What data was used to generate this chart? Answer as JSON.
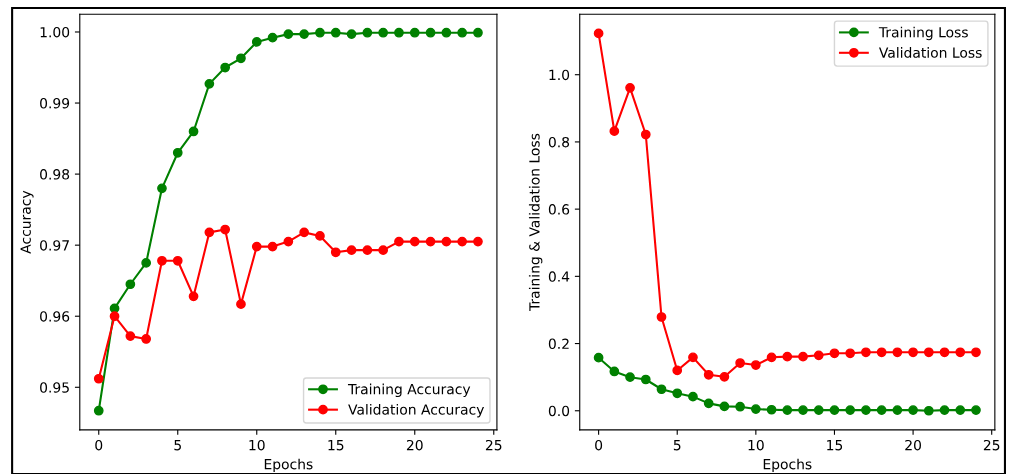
{
  "chart_data": [
    {
      "type": "line",
      "xlabel": "Epochs",
      "ylabel": "Accuracy",
      "x": [
        0,
        1,
        2,
        3,
        4,
        5,
        6,
        7,
        8,
        9,
        10,
        11,
        12,
        13,
        14,
        15,
        16,
        17,
        18,
        19,
        20,
        21,
        22,
        23,
        24
      ],
      "xlim": [
        -1.2,
        25.2
      ],
      "xticks": [
        0,
        5,
        10,
        15,
        20,
        25
      ],
      "ylim": [
        0.944,
        1.0025
      ],
      "yticks": [
        {
          "value": 0.95,
          "label": "0.95"
        },
        {
          "value": 0.96,
          "label": "0.96"
        },
        {
          "value": 0.97,
          "label": "0.97"
        },
        {
          "value": 0.98,
          "label": "0.98"
        },
        {
          "value": 0.99,
          "label": "0.99"
        },
        {
          "value": 1.0,
          "label": "1.00"
        }
      ],
      "marker": "circle",
      "line_style": "solid",
      "legend": "bottom right",
      "grid": false,
      "series": [
        {
          "name": "Training Accuracy",
          "color": "#008000",
          "values": [
            0.9467,
            0.9611,
            0.9645,
            0.9675,
            0.978,
            0.983,
            0.986,
            0.9927,
            0.995,
            0.9963,
            0.9986,
            0.9992,
            0.9997,
            0.9997,
            0.9999,
            0.9999,
            0.9997,
            0.9999,
            0.9999,
            0.9999,
            0.9999,
            0.9999,
            0.9999,
            0.9999,
            0.9999
          ]
        },
        {
          "name": "Validation Accuracy",
          "color": "#ff0000",
          "values": [
            0.9512,
            0.96,
            0.9572,
            0.9568,
            0.9678,
            0.9678,
            0.9628,
            0.9718,
            0.9722,
            0.9617,
            0.9698,
            0.9698,
            0.9705,
            0.9718,
            0.9713,
            0.969,
            0.9693,
            0.9693,
            0.9693,
            0.9705,
            0.9705,
            0.9705,
            0.9705,
            0.9705,
            0.9705
          ]
        }
      ]
    },
    {
      "type": "line",
      "xlabel": "Epochs",
      "ylabel": "Training & Validation Loss",
      "x": [
        0,
        1,
        2,
        3,
        4,
        5,
        6,
        7,
        8,
        9,
        10,
        11,
        12,
        13,
        14,
        15,
        16,
        17,
        18,
        19,
        20,
        21,
        22,
        23,
        24
      ],
      "xlim": [
        -1.2,
        25.2
      ],
      "xticks": [
        0,
        5,
        10,
        15,
        20,
        25
      ],
      "ylim": [
        -0.057,
        1.18
      ],
      "yticks": [
        {
          "value": 0.0,
          "label": "0.0"
        },
        {
          "value": 0.2,
          "label": "0.2"
        },
        {
          "value": 0.4,
          "label": "0.4"
        },
        {
          "value": 0.6,
          "label": "0.6"
        },
        {
          "value": 0.8,
          "label": "0.8"
        },
        {
          "value": 1.0,
          "label": "1.0"
        }
      ],
      "marker": "circle",
      "line_style": "solid",
      "legend": "top right",
      "grid": false,
      "series": [
        {
          "name": "Training Loss",
          "color": "#008000",
          "values": [
            0.158,
            0.117,
            0.1,
            0.093,
            0.064,
            0.052,
            0.042,
            0.022,
            0.013,
            0.012,
            0.005,
            0.003,
            0.002,
            0.002,
            0.002,
            0.002,
            0.002,
            0.002,
            0.002,
            0.002,
            0.002,
            0.0,
            0.002,
            0.002,
            0.002
          ]
        },
        {
          "name": "Validation Loss",
          "color": "#ff0000",
          "values": [
            1.123,
            0.832,
            0.961,
            0.822,
            0.279,
            0.12,
            0.159,
            0.107,
            0.101,
            0.142,
            0.136,
            0.159,
            0.161,
            0.161,
            0.165,
            0.171,
            0.171,
            0.174,
            0.174,
            0.174,
            0.174,
            0.174,
            0.174,
            0.174,
            0.174
          ]
        }
      ]
    }
  ]
}
